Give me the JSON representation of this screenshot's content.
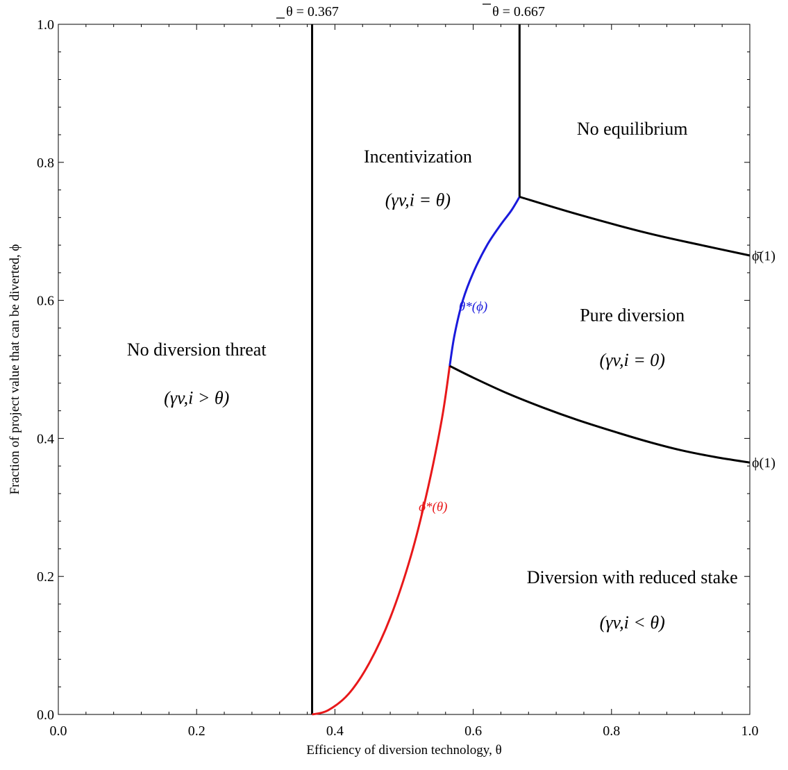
{
  "chart_data": {
    "type": "line",
    "title": "",
    "xlabel": "Efficiency of diversion technology, θ",
    "ylabel": "Fraction of project value that can be diverted, ϕ",
    "xlim": [
      0,
      1
    ],
    "ylim": [
      0,
      1
    ],
    "grid": false,
    "xticks": [
      "0.0",
      "0.2",
      "0.4",
      "0.6",
      "0.8",
      "1.0"
    ],
    "yticks": [
      "0.0",
      "0.2",
      "0.4",
      "0.6",
      "0.8",
      "1.0"
    ],
    "threshold_labels": {
      "theta_low": "θ = 0.367",
      "theta_high": "θ = 0.667"
    },
    "thresholds": {
      "theta_low": 0.367,
      "theta_high": 0.667
    },
    "series": [
      {
        "name": "ϕ*(θ)",
        "color": "#e8181a",
        "x": [
          0.367,
          0.39,
          0.42,
          0.45,
          0.48,
          0.51,
          0.535,
          0.555,
          0.566
        ],
        "y": [
          0.0,
          0.006,
          0.03,
          0.075,
          0.14,
          0.23,
          0.33,
          0.43,
          0.505
        ]
      },
      {
        "name": "θ*(ϕ)",
        "color": "#1a1adc",
        "x": [
          0.566,
          0.573,
          0.585,
          0.6,
          0.62,
          0.64,
          0.655,
          0.667
        ],
        "y": [
          0.505,
          0.55,
          0.6,
          0.64,
          0.68,
          0.71,
          0.73,
          0.75
        ]
      },
      {
        "name": "ϕ̄(1)",
        "color": "#000000",
        "x": [
          0.667,
          0.75,
          0.85,
          0.93,
          1.0
        ],
        "y": [
          0.75,
          0.725,
          0.698,
          0.68,
          0.665
        ]
      },
      {
        "name": "ϕ(1)",
        "color": "#000000",
        "x": [
          0.566,
          0.6,
          0.65,
          0.7,
          0.75,
          0.8,
          0.85,
          0.9,
          0.95,
          1.0
        ],
        "y": [
          0.505,
          0.488,
          0.465,
          0.445,
          0.427,
          0.411,
          0.396,
          0.383,
          0.373,
          0.365
        ]
      }
    ],
    "vertical_lines": [
      {
        "x": 0.367,
        "y_from": 0.0,
        "y_to": 1.0,
        "color": "#000000"
      },
      {
        "x": 0.667,
        "y_from": 0.75,
        "y_to": 1.0,
        "color": "#000000"
      }
    ],
    "regions": [
      {
        "name": "No diversion threat",
        "sub": "(γv,i > θ)",
        "x": 0.2,
        "y": 0.52,
        "y2": 0.45
      },
      {
        "name": "Incentivization",
        "sub": "(γv,i = θ)",
        "x": 0.52,
        "y": 0.8,
        "y2": 0.737
      },
      {
        "name": "No equilibrium",
        "sub": "",
        "x": 0.83,
        "y": 0.84,
        "y2": 0
      },
      {
        "name": "Pure diversion",
        "sub": "(γv,i = 0)",
        "x": 0.83,
        "y": 0.57,
        "y2": 0.505
      },
      {
        "name": "Diversion with reduced stake",
        "sub": "(γv,i < θ)",
        "x": 0.83,
        "y": 0.19,
        "y2": 0.125
      }
    ],
    "curve_labels": [
      {
        "text": "θ*(ϕ)",
        "color": "#1a1adc",
        "x": 0.6,
        "y": 0.585
      },
      {
        "text": "ϕ*(θ)",
        "color": "#e8181a",
        "x": 0.542,
        "y": 0.295
      }
    ],
    "edge_labels": [
      {
        "text": "ϕ̄(1)",
        "y": 0.665
      },
      {
        "text": "ϕ(1)",
        "y": 0.365
      }
    ]
  }
}
